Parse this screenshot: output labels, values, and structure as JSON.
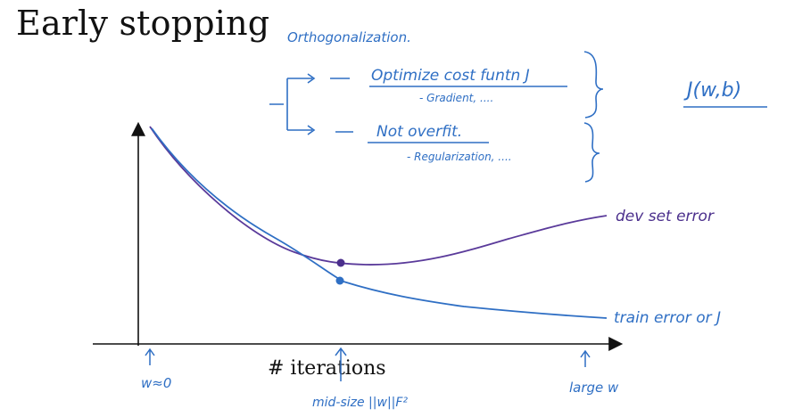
{
  "title": "Early stopping",
  "colors": {
    "ink_blue": "#2f6fc4",
    "ink_purple": "#5a3a9a",
    "axis": "#111111"
  },
  "notes": {
    "orthogonalization": "Orthogonalization.",
    "optimize": "Optimize cost funtn J",
    "gradient": "- Gradient, ....",
    "not_overfit": "Not overfit.",
    "regularization": "- Regularization, ....",
    "cost": "J(w,b)"
  },
  "chart_data": {
    "type": "line",
    "xlabel": "# iterations",
    "series": [
      {
        "name": "dev set error"
      },
      {
        "name": "train error or J"
      }
    ],
    "x_annotations": [
      "w≈0",
      "mid-size ||w||F²",
      "large w"
    ]
  }
}
